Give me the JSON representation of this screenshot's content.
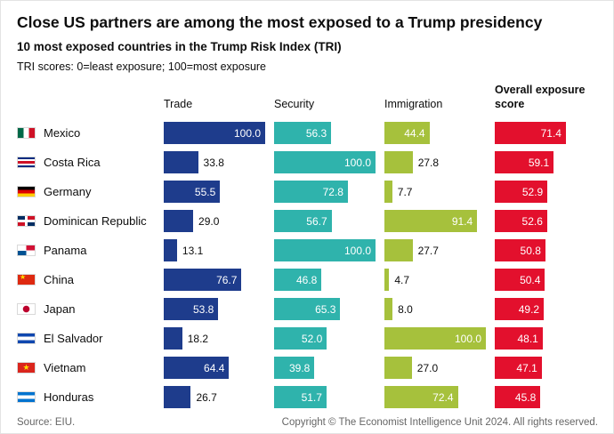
{
  "title": "Close US partners are among the most exposed to a Trump presidency",
  "subtitle": "10 most exposed countries in the Trump Risk Index (TRI)",
  "note": "TRI scores: 0=least exposure; 100=most exposure",
  "columns": {
    "trade": "Trade",
    "security": "Security",
    "immigration": "Immigration",
    "overall": "Overall exposure score"
  },
  "colors": {
    "trade": "#1e3c8c",
    "security": "#2fb3ac",
    "immigration": "#a6c13c",
    "overall": "#e3102d"
  },
  "footer": {
    "source": "Source: EIU.",
    "copyright": "Copyright © The Economist Intelligence Unit 2024. All rights reserved."
  },
  "chart_data": {
    "type": "bar",
    "orientation": "horizontal",
    "value_range": [
      0,
      100
    ],
    "title": "Close US partners are among the most exposed to a Trump presidency",
    "subtitle": "10 most exposed countries in the Trump Risk Index (TRI)",
    "note": "TRI scores: 0=least exposure; 100=most exposure",
    "categories": [
      "Mexico",
      "Costa Rica",
      "Germany",
      "Dominican Republic",
      "Panama",
      "China",
      "Japan",
      "El Salvador",
      "Vietnam",
      "Honduras"
    ],
    "flags": [
      "mexico",
      "costa-rica",
      "germany",
      "dominican-republic",
      "panama",
      "china",
      "japan",
      "el-salvador",
      "vietnam",
      "honduras"
    ],
    "series": [
      {
        "name": "Trade",
        "values": [
          100.0,
          33.8,
          55.5,
          29.0,
          13.1,
          76.7,
          53.8,
          18.2,
          64.4,
          26.7
        ]
      },
      {
        "name": "Security",
        "values": [
          56.3,
          100.0,
          72.8,
          56.7,
          100.0,
          46.8,
          65.3,
          52.0,
          39.8,
          51.7
        ]
      },
      {
        "name": "Immigration",
        "values": [
          44.4,
          27.8,
          7.7,
          91.4,
          27.7,
          4.7,
          8.0,
          100.0,
          27.0,
          72.4
        ]
      },
      {
        "name": "Overall exposure score",
        "values": [
          71.4,
          59.1,
          52.9,
          52.6,
          50.8,
          50.4,
          49.2,
          48.1,
          47.1,
          45.8
        ]
      }
    ],
    "legend_position": "column-headers",
    "grid": false
  }
}
